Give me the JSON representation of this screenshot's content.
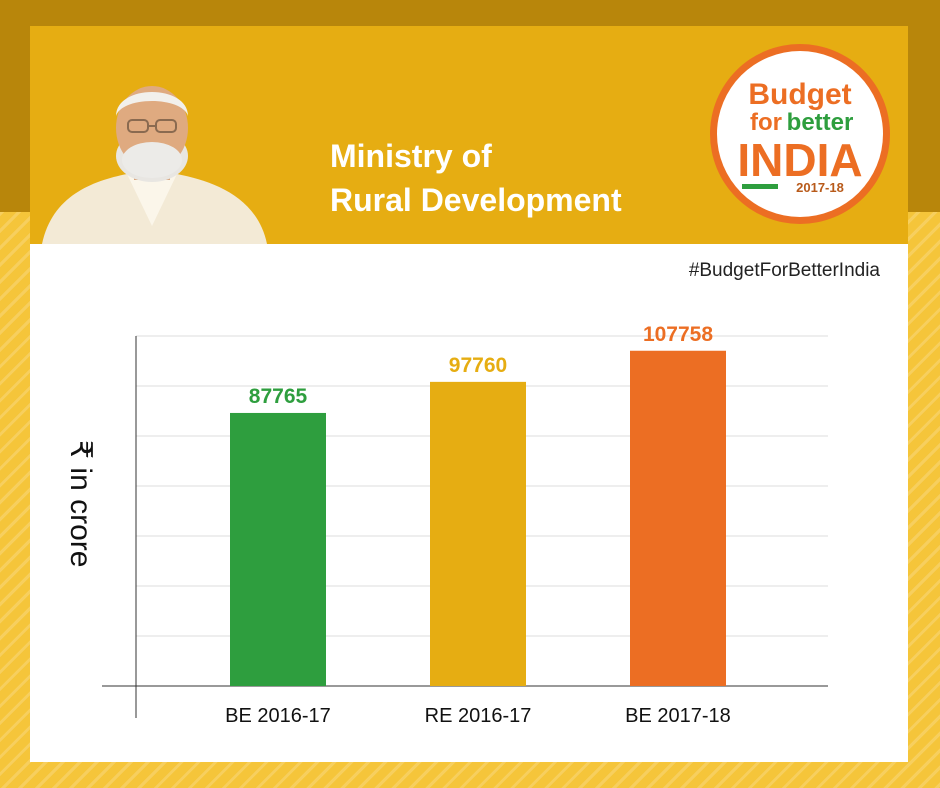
{
  "header": {
    "title_line1": "Ministry of",
    "title_line2": "Rural Development"
  },
  "logo": {
    "word1": "Budget",
    "word2": "for",
    "word3": "better",
    "word4": "INDIA",
    "year": "2017-18"
  },
  "hashtag": "#BudgetForBetterIndia",
  "colors": {
    "header_bg": "#e6ad12",
    "bar_green": "#2e9e3e",
    "bar_yellow": "#e6ad12",
    "bar_orange": "#ec6e23"
  },
  "chart_data": {
    "type": "bar",
    "categories": [
      "BE 2016-17",
      "RE 2016-17",
      "BE 2017-18"
    ],
    "values": [
      87765,
      97760,
      107758
    ],
    "bar_colors": [
      "#2e9e3e",
      "#e6ad12",
      "#ec6e23"
    ],
    "data_labels": [
      "87765",
      "97760",
      "107758"
    ],
    "ylabel": "₹ in crore",
    "ylim": [
      0,
      112500
    ],
    "grid": true
  }
}
